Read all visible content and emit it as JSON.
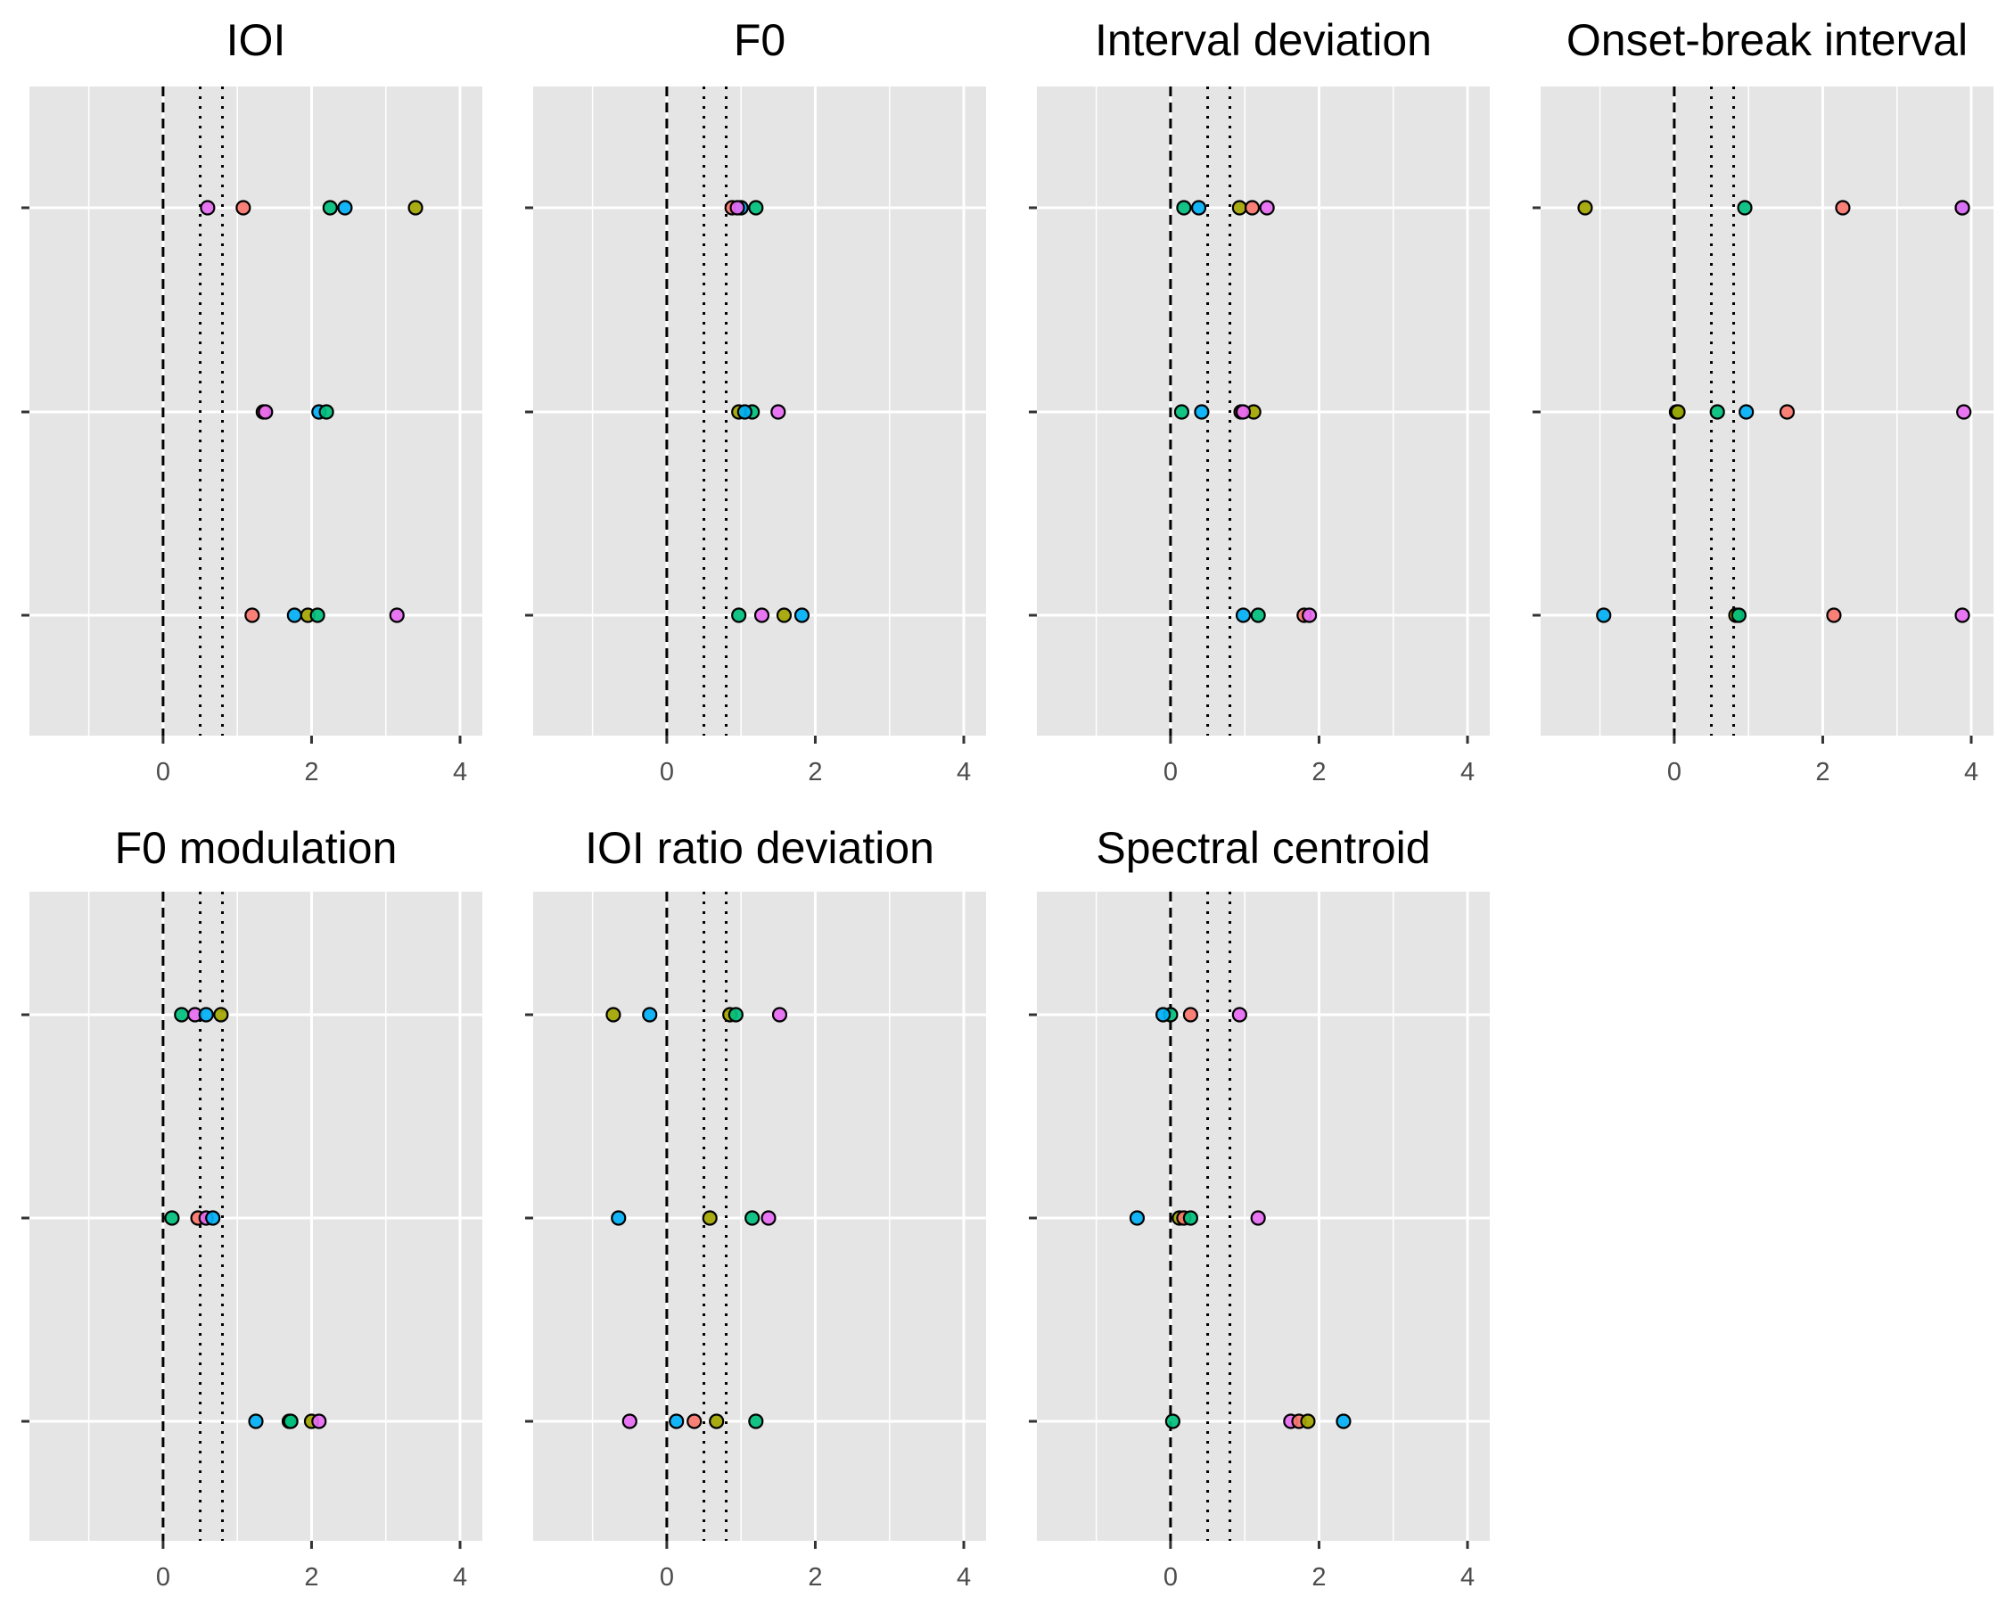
{
  "chart_data": [
    {
      "type": "scatter",
      "title": "IOI",
      "xlabel": "",
      "ylabel": "",
      "xlim": [
        -1.8,
        4.3
      ],
      "x_ticks": [
        0,
        2,
        4
      ],
      "x_tick_labels": [
        "0",
        "2",
        "4"
      ],
      "y_categories": 3,
      "grid": true,
      "reference_lines": {
        "dashed": 0,
        "dotted": [
          0.5,
          0.8
        ]
      },
      "points": [
        {
          "x": 0.6,
          "row": 1,
          "color": "#E76BF3"
        },
        {
          "x": 1.08,
          "row": 1,
          "color": "#F8766D"
        },
        {
          "x": 2.25,
          "row": 1,
          "color": "#00BF7D"
        },
        {
          "x": 2.45,
          "row": 1,
          "color": "#00B0F6"
        },
        {
          "x": 3.4,
          "row": 1,
          "color": "#A3A500"
        },
        {
          "x": 1.35,
          "row": 2,
          "color": "#F8766D"
        },
        {
          "x": 1.38,
          "row": 2,
          "color": "#E76BF3"
        },
        {
          "x": 2.1,
          "row": 2,
          "color": "#00B0F6"
        },
        {
          "x": 2.2,
          "row": 2,
          "color": "#00BF7D"
        },
        {
          "x": 1.2,
          "row": 3,
          "color": "#F8766D"
        },
        {
          "x": 1.77,
          "row": 3,
          "color": "#00B0F6"
        },
        {
          "x": 1.95,
          "row": 3,
          "color": "#A3A500"
        },
        {
          "x": 2.08,
          "row": 3,
          "color": "#00BF7D"
        },
        {
          "x": 3.15,
          "row": 3,
          "color": "#E76BF3"
        }
      ]
    },
    {
      "type": "scatter",
      "title": "F0",
      "xlabel": "",
      "ylabel": "",
      "xlim": [
        -1.8,
        4.3
      ],
      "x_ticks": [
        0,
        2,
        4
      ],
      "x_tick_labels": [
        "0",
        "2",
        "4"
      ],
      "y_categories": 3,
      "grid": true,
      "reference_lines": {
        "dashed": 0,
        "dotted": [
          0.5,
          0.8
        ]
      },
      "points": [
        {
          "x": 0.88,
          "row": 1,
          "color": "#F8766D"
        },
        {
          "x": 1.0,
          "row": 1,
          "color": "#00B0F6"
        },
        {
          "x": 0.95,
          "row": 1,
          "color": "#E76BF3"
        },
        {
          "x": 1.2,
          "row": 1,
          "color": "#00BF7D"
        },
        {
          "x": 0.97,
          "row": 2,
          "color": "#A3A500"
        },
        {
          "x": 1.15,
          "row": 2,
          "color": "#00BF7D"
        },
        {
          "x": 1.05,
          "row": 2,
          "color": "#00B0F6"
        },
        {
          "x": 1.5,
          "row": 2,
          "color": "#E76BF3"
        },
        {
          "x": 0.97,
          "row": 3,
          "color": "#00BF7D"
        },
        {
          "x": 1.28,
          "row": 3,
          "color": "#E76BF3"
        },
        {
          "x": 1.58,
          "row": 3,
          "color": "#A3A500"
        },
        {
          "x": 1.82,
          "row": 3,
          "color": "#00B0F6"
        }
      ]
    },
    {
      "type": "scatter",
      "title": "Interval deviation",
      "xlabel": "",
      "ylabel": "",
      "xlim": [
        -1.8,
        4.3
      ],
      "x_ticks": [
        0,
        2,
        4
      ],
      "x_tick_labels": [
        "0",
        "2",
        "4"
      ],
      "y_categories": 3,
      "grid": true,
      "reference_lines": {
        "dashed": 0,
        "dotted": [
          0.5,
          0.8
        ]
      },
      "points": [
        {
          "x": 0.18,
          "row": 1,
          "color": "#00BF7D"
        },
        {
          "x": 0.38,
          "row": 1,
          "color": "#00B0F6"
        },
        {
          "x": 0.93,
          "row": 1,
          "color": "#A3A500"
        },
        {
          "x": 1.1,
          "row": 1,
          "color": "#F8766D"
        },
        {
          "x": 1.3,
          "row": 1,
          "color": "#E76BF3"
        },
        {
          "x": 0.15,
          "row": 2,
          "color": "#00BF7D"
        },
        {
          "x": 0.42,
          "row": 2,
          "color": "#00B0F6"
        },
        {
          "x": 0.95,
          "row": 2,
          "color": "#F8766D"
        },
        {
          "x": 1.12,
          "row": 2,
          "color": "#A3A500"
        },
        {
          "x": 0.98,
          "row": 2,
          "color": "#E76BF3"
        },
        {
          "x": 0.98,
          "row": 3,
          "color": "#00B0F6"
        },
        {
          "x": 1.18,
          "row": 3,
          "color": "#00BF7D"
        },
        {
          "x": 1.8,
          "row": 3,
          "color": "#F8766D"
        },
        {
          "x": 1.87,
          "row": 3,
          "color": "#E76BF3"
        }
      ]
    },
    {
      "type": "scatter",
      "title": "Onset-break interval",
      "xlabel": "",
      "ylabel": "",
      "xlim": [
        -1.8,
        4.3
      ],
      "x_ticks": [
        0,
        2,
        4
      ],
      "x_tick_labels": [
        "0",
        "2",
        "4"
      ],
      "y_categories": 3,
      "grid": true,
      "reference_lines": {
        "dashed": 0,
        "dotted": [
          0.5,
          0.8
        ]
      },
      "points": [
        {
          "x": -1.2,
          "row": 1,
          "color": "#A3A500"
        },
        {
          "x": 0.95,
          "row": 1,
          "color": "#00BF7D"
        },
        {
          "x": 2.27,
          "row": 1,
          "color": "#F8766D"
        },
        {
          "x": 3.88,
          "row": 1,
          "color": "#00B0F6"
        },
        {
          "x": 3.88,
          "row": 1,
          "color": "#E76BF3"
        },
        {
          "x": 0.03,
          "row": 2,
          "color": "#00BF7D"
        },
        {
          "x": 0.05,
          "row": 2,
          "color": "#A3A500"
        },
        {
          "x": 0.58,
          "row": 2,
          "color": "#00BF7D"
        },
        {
          "x": 0.97,
          "row": 2,
          "color": "#00B0F6"
        },
        {
          "x": 1.52,
          "row": 2,
          "color": "#F8766D"
        },
        {
          "x": 3.9,
          "row": 2,
          "color": "#E76BF3"
        },
        {
          "x": -0.95,
          "row": 3,
          "color": "#00B0F6"
        },
        {
          "x": 0.83,
          "row": 3,
          "color": "#A3A500"
        },
        {
          "x": 0.87,
          "row": 3,
          "color": "#00BF7D"
        },
        {
          "x": 2.15,
          "row": 3,
          "color": "#F8766D"
        },
        {
          "x": 3.88,
          "row": 3,
          "color": "#E76BF3"
        }
      ]
    },
    {
      "type": "scatter",
      "title": "F0 modulation",
      "xlabel": "",
      "ylabel": "",
      "xlim": [
        -1.8,
        4.3
      ],
      "x_ticks": [
        0,
        2,
        4
      ],
      "x_tick_labels": [
        "0",
        "2",
        "4"
      ],
      "y_categories": 3,
      "grid": true,
      "reference_lines": {
        "dashed": 0,
        "dotted": [
          0.5,
          0.8
        ]
      },
      "points": [
        {
          "x": 0.25,
          "row": 1,
          "color": "#00BF7D"
        },
        {
          "x": 0.43,
          "row": 1,
          "color": "#E76BF3"
        },
        {
          "x": 0.58,
          "row": 1,
          "color": "#00B0F6"
        },
        {
          "x": 0.78,
          "row": 1,
          "color": "#A3A500"
        },
        {
          "x": 0.12,
          "row": 2,
          "color": "#00BF7D"
        },
        {
          "x": 0.47,
          "row": 2,
          "color": "#F8766D"
        },
        {
          "x": 0.58,
          "row": 2,
          "color": "#E76BF3"
        },
        {
          "x": 0.67,
          "row": 2,
          "color": "#00B0F6"
        },
        {
          "x": 1.25,
          "row": 3,
          "color": "#00B0F6"
        },
        {
          "x": 1.7,
          "row": 3,
          "color": "#00BF7D"
        },
        {
          "x": 1.72,
          "row": 3,
          "color": "#00BF7D"
        },
        {
          "x": 2.0,
          "row": 3,
          "color": "#A3A500"
        },
        {
          "x": 2.1,
          "row": 3,
          "color": "#E76BF3"
        }
      ]
    },
    {
      "type": "scatter",
      "title": "IOI ratio deviation",
      "xlabel": "",
      "ylabel": "",
      "xlim": [
        -1.8,
        4.3
      ],
      "x_ticks": [
        0,
        2,
        4
      ],
      "x_tick_labels": [
        "0",
        "2",
        "4"
      ],
      "y_categories": 3,
      "grid": true,
      "reference_lines": {
        "dashed": 0,
        "dotted": [
          0.5,
          0.8
        ]
      },
      "points": [
        {
          "x": -0.72,
          "row": 1,
          "color": "#A3A500"
        },
        {
          "x": -0.23,
          "row": 1,
          "color": "#00B0F6"
        },
        {
          "x": 0.85,
          "row": 1,
          "color": "#A3A500"
        },
        {
          "x": 0.93,
          "row": 1,
          "color": "#00BF7D"
        },
        {
          "x": 1.52,
          "row": 1,
          "color": "#E76BF3"
        },
        {
          "x": -0.65,
          "row": 2,
          "color": "#00B0F6"
        },
        {
          "x": 0.58,
          "row": 2,
          "color": "#A3A500"
        },
        {
          "x": 1.15,
          "row": 2,
          "color": "#00BF7D"
        },
        {
          "x": 1.37,
          "row": 2,
          "color": "#E76BF3"
        },
        {
          "x": -0.5,
          "row": 3,
          "color": "#E76BF3"
        },
        {
          "x": 0.13,
          "row": 3,
          "color": "#00B0F6"
        },
        {
          "x": 0.37,
          "row": 3,
          "color": "#F8766D"
        },
        {
          "x": 0.67,
          "row": 3,
          "color": "#A3A500"
        },
        {
          "x": 1.2,
          "row": 3,
          "color": "#00BF7D"
        }
      ]
    },
    {
      "type": "scatter",
      "title": "Spectral centroid",
      "xlabel": "",
      "ylabel": "",
      "xlim": [
        -1.8,
        4.3
      ],
      "x_ticks": [
        0,
        2,
        4
      ],
      "x_tick_labels": [
        "0",
        "2",
        "4"
      ],
      "y_categories": 3,
      "grid": true,
      "reference_lines": {
        "dashed": 0,
        "dotted": [
          0.5,
          0.8
        ]
      },
      "points": [
        {
          "x": 0.0,
          "row": 1,
          "color": "#00BF7D"
        },
        {
          "x": -0.1,
          "row": 1,
          "color": "#00B0F6"
        },
        {
          "x": 0.27,
          "row": 1,
          "color": "#F8766D"
        },
        {
          "x": 0.93,
          "row": 1,
          "color": "#E76BF3"
        },
        {
          "x": -0.45,
          "row": 2,
          "color": "#00B0F6"
        },
        {
          "x": 0.12,
          "row": 2,
          "color": "#A3A500"
        },
        {
          "x": 0.18,
          "row": 2,
          "color": "#F8766D"
        },
        {
          "x": 0.27,
          "row": 2,
          "color": "#00BF7D"
        },
        {
          "x": 1.18,
          "row": 2,
          "color": "#E76BF3"
        },
        {
          "x": 0.03,
          "row": 3,
          "color": "#00BF7D"
        },
        {
          "x": 1.62,
          "row": 3,
          "color": "#E76BF3"
        },
        {
          "x": 1.73,
          "row": 3,
          "color": "#F8766D"
        },
        {
          "x": 1.85,
          "row": 3,
          "color": "#A3A500"
        },
        {
          "x": 2.33,
          "row": 3,
          "color": "#00B0F6"
        }
      ]
    }
  ],
  "colors": {
    "panel_background": "#E5E5E5",
    "grid_line": "#FFFFFF",
    "reference_line": "#000000",
    "tick_text": "#4D4D4D",
    "tick_mark": "#333333",
    "point_outline": "#000000"
  }
}
